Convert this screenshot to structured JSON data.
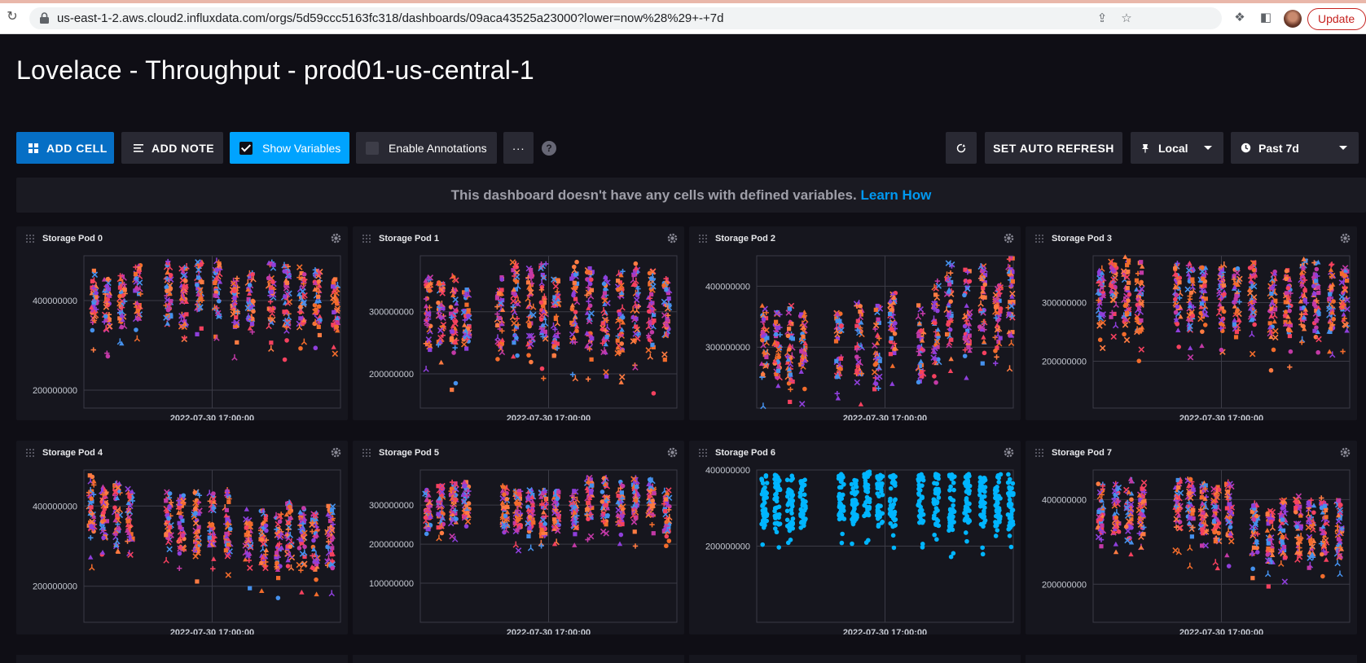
{
  "browser": {
    "url": "us-east-1-2.aws.cloud2.influxdata.com/orgs/5d59ccc5163fc318/dashboards/09aca43525a23000?lower=now%28%29+-+7d",
    "update_label": "Update"
  },
  "dashboard": {
    "title": "Lovelace - Throughput - prod01-us-central-1"
  },
  "toolbar": {
    "add_cell": "ADD CELL",
    "add_note": "ADD NOTE",
    "show_variables": "Show Variables",
    "enable_annotations": "Enable Annotations",
    "more": "···",
    "help": "?",
    "auto_refresh": "SET AUTO REFRESH",
    "timezone": "Local",
    "time_range": "Past 7d"
  },
  "notice": {
    "message": "This dashboard doesn't have any cells with defined variables.",
    "link": "Learn How"
  },
  "palette": [
    "#4591ed",
    "#8f3fdb",
    "#c239a6",
    "#f5415f",
    "#ff7b42",
    "#f26c2c"
  ],
  "cells": [
    {
      "title": "Storage Pod 0",
      "x_label": "2022-07-30 17:00:00",
      "y_ticks": [
        400000000,
        200000000
      ],
      "chart_data": {
        "type": "scatter",
        "ylim": [
          160000000,
          500000000
        ],
        "clusters": [
          [
            0.04,
            340000000,
            470000000
          ],
          [
            0.09,
            330000000,
            450000000
          ],
          [
            0.15,
            340000000,
            460000000
          ],
          [
            0.21,
            350000000,
            480000000
          ],
          [
            0.33,
            360000000,
            490000000
          ],
          [
            0.39,
            340000000,
            480000000
          ],
          [
            0.45,
            370000000,
            490000000
          ],
          [
            0.52,
            360000000,
            490000000
          ],
          [
            0.59,
            330000000,
            450000000
          ],
          [
            0.65,
            340000000,
            470000000
          ],
          [
            0.73,
            340000000,
            490000000
          ],
          [
            0.79,
            330000000,
            480000000
          ],
          [
            0.85,
            340000000,
            480000000
          ],
          [
            0.91,
            340000000,
            470000000
          ],
          [
            0.98,
            330000000,
            450000000
          ]
        ]
      }
    },
    {
      "title": "Storage Pod 1",
      "x_label": "2022-07-30 17:00:00",
      "y_ticks": [
        300000000,
        200000000
      ],
      "chart_data": {
        "type": "scatter",
        "ylim": [
          145000000,
          390000000
        ],
        "clusters": [
          [
            0.03,
            240000000,
            360000000
          ],
          [
            0.08,
            250000000,
            350000000
          ],
          [
            0.13,
            230000000,
            360000000
          ],
          [
            0.18,
            250000000,
            340000000
          ],
          [
            0.31,
            240000000,
            360000000
          ],
          [
            0.37,
            250000000,
            380000000
          ],
          [
            0.43,
            240000000,
            370000000
          ],
          [
            0.48,
            250000000,
            380000000
          ],
          [
            0.53,
            240000000,
            360000000
          ],
          [
            0.6,
            250000000,
            380000000
          ],
          [
            0.66,
            240000000,
            370000000
          ],
          [
            0.72,
            230000000,
            360000000
          ],
          [
            0.78,
            230000000,
            370000000
          ],
          [
            0.84,
            250000000,
            380000000
          ],
          [
            0.9,
            230000000,
            370000000
          ],
          [
            0.96,
            260000000,
            360000000
          ]
        ]
      }
    },
    {
      "title": "Storage Pod 2",
      "x_label": "2022-07-30 17:00:00",
      "y_ticks": [
        400000000,
        300000000
      ],
      "chart_data": {
        "type": "scatter",
        "ylim": [
          200000000,
          450000000
        ],
        "clusters": [
          [
            0.03,
            250000000,
            370000000
          ],
          [
            0.08,
            250000000,
            360000000
          ],
          [
            0.13,
            240000000,
            370000000
          ],
          [
            0.18,
            250000000,
            360000000
          ],
          [
            0.32,
            250000000,
            360000000
          ],
          [
            0.4,
            240000000,
            380000000
          ],
          [
            0.47,
            230000000,
            370000000
          ],
          [
            0.53,
            280000000,
            390000000
          ],
          [
            0.64,
            240000000,
            370000000
          ],
          [
            0.7,
            270000000,
            410000000
          ],
          [
            0.75,
            300000000,
            440000000
          ],
          [
            0.82,
            290000000,
            430000000
          ],
          [
            0.88,
            300000000,
            440000000
          ],
          [
            0.94,
            290000000,
            420000000
          ],
          [
            0.99,
            310000000,
            450000000
          ]
        ]
      }
    },
    {
      "title": "Storage Pod 3",
      "x_label": "2022-07-30 17:00:00",
      "y_ticks": [
        300000000,
        200000000
      ],
      "chart_data": {
        "type": "scatter",
        "ylim": [
          120000000,
          380000000
        ],
        "clusters": [
          [
            0.03,
            260000000,
            360000000
          ],
          [
            0.08,
            270000000,
            370000000
          ],
          [
            0.13,
            260000000,
            380000000
          ],
          [
            0.18,
            250000000,
            370000000
          ],
          [
            0.33,
            260000000,
            370000000
          ],
          [
            0.38,
            250000000,
            370000000
          ],
          [
            0.43,
            260000000,
            360000000
          ],
          [
            0.5,
            250000000,
            370000000
          ],
          [
            0.56,
            250000000,
            360000000
          ],
          [
            0.62,
            260000000,
            370000000
          ],
          [
            0.7,
            240000000,
            370000000
          ],
          [
            0.76,
            240000000,
            360000000
          ],
          [
            0.82,
            250000000,
            380000000
          ],
          [
            0.87,
            240000000,
            370000000
          ],
          [
            0.93,
            250000000,
            370000000
          ],
          [
            0.98,
            260000000,
            360000000
          ]
        ]
      }
    },
    {
      "title": "Storage Pod 4",
      "x_label": "2022-07-30 17:00:00",
      "y_ticks": [
        400000000,
        200000000
      ],
      "chart_data": {
        "type": "scatter",
        "ylim": [
          110000000,
          490000000
        ],
        "clusters": [
          [
            0.03,
            320000000,
            480000000
          ],
          [
            0.08,
            320000000,
            460000000
          ],
          [
            0.13,
            300000000,
            460000000
          ],
          [
            0.18,
            310000000,
            450000000
          ],
          [
            0.33,
            300000000,
            440000000
          ],
          [
            0.38,
            290000000,
            430000000
          ],
          [
            0.44,
            280000000,
            440000000
          ],
          [
            0.5,
            300000000,
            440000000
          ],
          [
            0.56,
            280000000,
            440000000
          ],
          [
            0.64,
            260000000,
            400000000
          ],
          [
            0.7,
            250000000,
            390000000
          ],
          [
            0.76,
            240000000,
            380000000
          ],
          [
            0.8,
            260000000,
            410000000
          ],
          [
            0.85,
            250000000,
            400000000
          ],
          [
            0.9,
            240000000,
            390000000
          ],
          [
            0.96,
            250000000,
            400000000
          ]
        ]
      }
    },
    {
      "title": "Storage Pod 5",
      "x_label": "2022-07-30 17:00:00",
      "y_ticks": [
        300000000,
        200000000,
        100000000
      ],
      "chart_data": {
        "type": "scatter",
        "ylim": [
          0,
          390000000
        ],
        "clusters": [
          [
            0.03,
            240000000,
            340000000
          ],
          [
            0.08,
            240000000,
            350000000
          ],
          [
            0.13,
            250000000,
            360000000
          ],
          [
            0.18,
            260000000,
            360000000
          ],
          [
            0.33,
            240000000,
            350000000
          ],
          [
            0.38,
            230000000,
            340000000
          ],
          [
            0.43,
            230000000,
            340000000
          ],
          [
            0.48,
            220000000,
            340000000
          ],
          [
            0.53,
            230000000,
            340000000
          ],
          [
            0.6,
            240000000,
            340000000
          ],
          [
            0.66,
            260000000,
            370000000
          ],
          [
            0.72,
            250000000,
            370000000
          ],
          [
            0.78,
            250000000,
            360000000
          ],
          [
            0.84,
            250000000,
            370000000
          ],
          [
            0.9,
            260000000,
            370000000
          ],
          [
            0.96,
            220000000,
            340000000
          ]
        ]
      }
    },
    {
      "title": "Storage Pod 6",
      "x_label": "2022-07-30 17:00:00",
      "y_ticks": [
        400000000,
        200000000
      ],
      "chart_data": {
        "type": "scatter",
        "ylim": [
          0,
          400000000
        ],
        "mono": "#00b5ff",
        "clusters": [
          [
            0.03,
            250000000,
            390000000
          ],
          [
            0.08,
            240000000,
            390000000
          ],
          [
            0.13,
            240000000,
            390000000
          ],
          [
            0.18,
            260000000,
            380000000
          ],
          [
            0.33,
            260000000,
            390000000
          ],
          [
            0.38,
            260000000,
            390000000
          ],
          [
            0.43,
            270000000,
            400000000
          ],
          [
            0.48,
            260000000,
            390000000
          ],
          [
            0.53,
            250000000,
            390000000
          ],
          [
            0.64,
            260000000,
            390000000
          ],
          [
            0.7,
            250000000,
            390000000
          ],
          [
            0.76,
            240000000,
            390000000
          ],
          [
            0.82,
            260000000,
            390000000
          ],
          [
            0.88,
            240000000,
            400000000
          ],
          [
            0.94,
            250000000,
            390000000
          ],
          [
            0.99,
            240000000,
            390000000
          ]
        ]
      }
    },
    {
      "title": "Storage Pod 7",
      "x_label": "2022-07-30 17:00:00",
      "y_ticks": [
        400000000,
        200000000
      ],
      "chart_data": {
        "type": "scatter",
        "ylim": [
          110000000,
          470000000
        ],
        "clusters": [
          [
            0.03,
            310000000,
            440000000
          ],
          [
            0.09,
            320000000,
            440000000
          ],
          [
            0.14,
            300000000,
            450000000
          ],
          [
            0.19,
            310000000,
            440000000
          ],
          [
            0.33,
            330000000,
            450000000
          ],
          [
            0.38,
            310000000,
            450000000
          ],
          [
            0.43,
            320000000,
            440000000
          ],
          [
            0.48,
            300000000,
            440000000
          ],
          [
            0.53,
            300000000,
            440000000
          ],
          [
            0.63,
            270000000,
            390000000
          ],
          [
            0.69,
            250000000,
            380000000
          ],
          [
            0.74,
            260000000,
            400000000
          ],
          [
            0.8,
            270000000,
            410000000
          ],
          [
            0.85,
            260000000,
            400000000
          ],
          [
            0.9,
            270000000,
            410000000
          ],
          [
            0.96,
            260000000,
            400000000
          ]
        ]
      }
    }
  ]
}
